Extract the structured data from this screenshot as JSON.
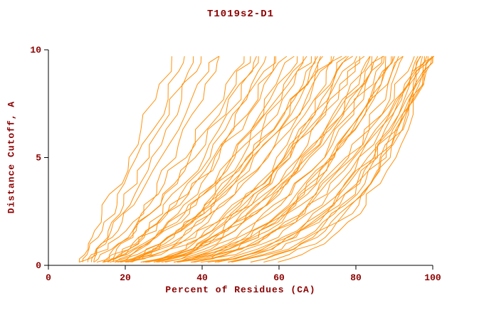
{
  "chart_data": {
    "type": "line",
    "title": "T1019s2-D1",
    "xlabel": "Percent of Residues (CA)",
    "ylabel": "Distance Cutoff, A",
    "xlim": [
      0,
      100
    ],
    "ylim": [
      0,
      10
    ],
    "x_ticks": [
      0,
      20,
      40,
      60,
      80,
      100
    ],
    "y_ticks": [
      0,
      5,
      10
    ],
    "grid": false,
    "legend": "none",
    "line_color": "#ff8c00",
    "text_color": "#8b0000",
    "axis_color": "#000000",
    "clip_y_max": 9.7,
    "sample_y": [
      0.15,
      0.3,
      0.5,
      0.75,
      1,
      1.3,
      1.6,
      2,
      2.4,
      2.8,
      3.3,
      3.8,
      4.4,
      5,
      5.6,
      6.3,
      7,
      7.7,
      8.4,
      9,
      9.4,
      9.7
    ],
    "series_encoding": "curve = [x_percent_at_cutoff_0, x_percent_at_cutoff_10, shape_exponent, seed]; x(y) = x0 + (x10 - x0) * (y/10)^shape",
    "curves": [
      [
        6,
        33,
        0.85,
        1
      ],
      [
        7,
        36,
        0.8,
        2
      ],
      [
        8,
        40,
        0.75,
        3
      ],
      [
        9,
        44,
        0.8,
        4
      ],
      [
        10,
        38,
        0.9,
        5
      ],
      [
        12,
        45,
        0.7,
        6
      ],
      [
        7,
        52,
        0.7,
        7
      ],
      [
        8,
        55,
        0.65,
        8
      ],
      [
        10,
        58,
        0.6,
        9
      ],
      [
        11,
        60,
        0.65,
        10
      ],
      [
        9,
        62,
        0.6,
        11
      ],
      [
        12,
        64,
        0.55,
        12
      ],
      [
        14,
        56,
        0.7,
        13
      ],
      [
        15,
        60,
        0.6,
        14
      ],
      [
        13,
        53,
        0.75,
        15
      ],
      [
        16,
        65,
        0.55,
        16
      ],
      [
        8,
        68,
        0.55,
        17
      ],
      [
        10,
        70,
        0.5,
        18
      ],
      [
        12,
        72,
        0.55,
        19
      ],
      [
        14,
        74,
        0.5,
        20
      ],
      [
        16,
        76,
        0.45,
        21
      ],
      [
        18,
        78,
        0.5,
        22
      ],
      [
        20,
        80,
        0.45,
        23
      ],
      [
        11,
        67,
        0.6,
        24
      ],
      [
        13,
        71,
        0.5,
        25
      ],
      [
        15,
        75,
        0.55,
        26
      ],
      [
        17,
        69,
        0.6,
        27
      ],
      [
        19,
        77,
        0.45,
        28
      ],
      [
        21,
        79,
        0.5,
        29
      ],
      [
        9,
        73,
        0.5,
        30
      ],
      [
        10,
        82,
        0.45,
        31
      ],
      [
        12,
        84,
        0.4,
        32
      ],
      [
        14,
        86,
        0.45,
        33
      ],
      [
        16,
        88,
        0.4,
        34
      ],
      [
        18,
        90,
        0.35,
        35
      ],
      [
        20,
        92,
        0.4,
        36
      ],
      [
        22,
        94,
        0.35,
        37
      ],
      [
        11,
        83,
        0.5,
        38
      ],
      [
        13,
        85,
        0.4,
        39
      ],
      [
        15,
        87,
        0.45,
        40
      ],
      [
        17,
        89,
        0.35,
        41
      ],
      [
        19,
        91,
        0.4,
        42
      ],
      [
        21,
        93,
        0.35,
        43
      ],
      [
        23,
        88,
        0.45,
        44
      ],
      [
        25,
        90,
        0.4,
        45
      ],
      [
        24,
        86,
        0.5,
        46
      ],
      [
        12,
        96,
        0.35,
        47
      ],
      [
        14,
        97,
        0.3,
        48
      ],
      [
        16,
        98,
        0.35,
        49
      ],
      [
        18,
        99,
        0.3,
        50
      ],
      [
        20,
        100,
        0.3,
        51
      ],
      [
        22,
        100,
        0.28,
        52
      ],
      [
        25,
        99,
        0.32,
        53
      ],
      [
        28,
        100,
        0.3,
        54
      ],
      [
        30,
        98,
        0.35,
        55
      ],
      [
        32,
        100,
        0.3,
        56
      ],
      [
        26,
        97,
        0.35,
        57
      ],
      [
        35,
        100,
        0.32,
        58
      ],
      [
        38,
        99,
        0.3,
        59
      ],
      [
        40,
        100,
        0.28,
        60
      ]
    ]
  }
}
